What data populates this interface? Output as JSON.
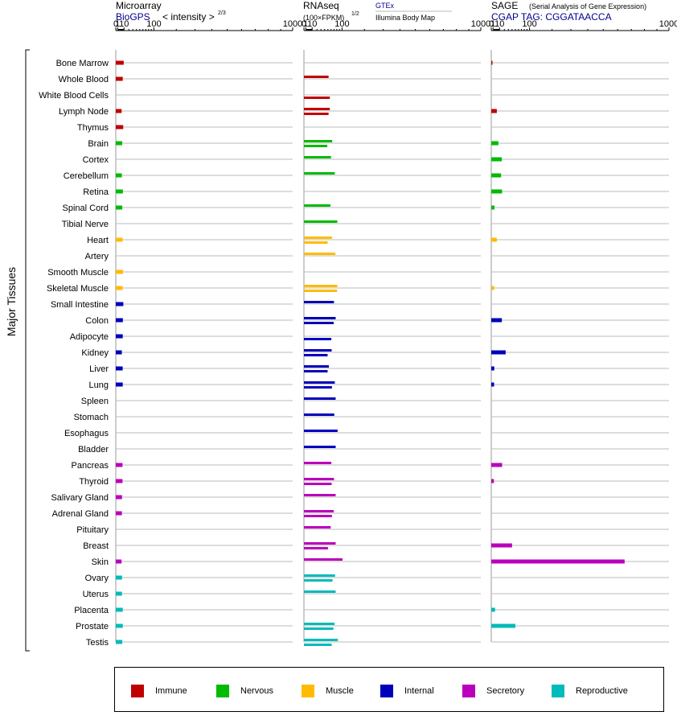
{
  "colors": {
    "Immune": "#c00000",
    "Nervous": "#00bb00",
    "Muscle": "#ffbb00",
    "Internal": "#0000bb",
    "Secretory": "#bb00bb",
    "Reproductive": "#00bbbb"
  },
  "y_axis_label": "Major Tissues",
  "tissues": [
    "Bone Marrow",
    "Whole Blood",
    "White Blood Cells",
    "Lymph Node",
    "Thymus",
    "Brain",
    "Cortex",
    "Cerebellum",
    "Retina",
    "Spinal Cord",
    "Tibial Nerve",
    "Heart",
    "Artery",
    "Smooth Muscle",
    "Skeletal Muscle",
    "Small Intestine",
    "Colon",
    "Adipocyte",
    "Kidney",
    "Liver",
    "Lung",
    "Spleen",
    "Stomach",
    "Esophagus",
    "Bladder",
    "Pancreas",
    "Thyroid",
    "Salivary Gland",
    "Adrenal Gland",
    "Pituitary",
    "Breast",
    "Skin",
    "Ovary",
    "Uterus",
    "Placenta",
    "Prostate",
    "Testis"
  ],
  "tissue_groups": [
    "Immune",
    "Immune",
    "Immune",
    "Immune",
    "Immune",
    "Nervous",
    "Nervous",
    "Nervous",
    "Nervous",
    "Nervous",
    "Nervous",
    "Muscle",
    "Muscle",
    "Muscle",
    "Muscle",
    "Internal",
    "Internal",
    "Internal",
    "Internal",
    "Internal",
    "Internal",
    "Internal",
    "Internal",
    "Internal",
    "Internal",
    "Secretory",
    "Secretory",
    "Secretory",
    "Secretory",
    "Secretory",
    "Secretory",
    "Secretory",
    "Reproductive",
    "Reproductive",
    "Reproductive",
    "Reproductive",
    "Reproductive"
  ],
  "legend": [
    "Immune",
    "Nervous",
    "Muscle",
    "Internal",
    "Secretory",
    "Reproductive"
  ],
  "chart_data": [
    {
      "type": "bar",
      "panel": "microarray",
      "title": "Microarray",
      "subtitle_source": "BioGPS",
      "subtitle_unit": "< intensity >",
      "unit_exponent": "2/3",
      "ticks": [
        "0",
        "1",
        "10",
        "100",
        "1000"
      ],
      "ylim": [
        0,
        1000
      ],
      "values": [
        9.5,
        7.8,
        null,
        6.0,
        8.6,
        6.9,
        null,
        6.4,
        8.1,
        7.0,
        null,
        7.4,
        null,
        8.2,
        7.4,
        8.8,
        8.0,
        7.8,
        6.3,
        7.7,
        7.8,
        null,
        null,
        null,
        null,
        7.4,
        7.4,
        6.6,
        6.4,
        null,
        null,
        5.9,
        6.6,
        6.5,
        7.8,
        7.9,
        7.0
      ]
    },
    {
      "type": "bar",
      "panel": "rnaseq",
      "title": "RNAseq",
      "subtitle_unit": "(100×FPKM)",
      "unit_exponent": "1/2",
      "source_link": "GTEx",
      "source_note": "Illumina Body Map",
      "ticks": [
        "0",
        "1",
        "10",
        "100",
        "1000"
      ],
      "ylim": [
        0,
        1000
      ],
      "values_gtex": [
        null,
        52,
        null,
        56,
        null,
        64,
        60,
        73,
        null,
        58,
        82,
        63,
        75,
        null,
        82,
        70,
        76,
        null,
        62,
        53,
        73,
        76,
        71,
        83,
        76,
        61,
        70,
        76,
        69,
        59,
        76,
        102,
        74,
        76,
        null,
        72,
        84
      ],
      "values_bodymap": [
        null,
        null,
        56,
        52,
        null,
        48,
        null,
        null,
        null,
        null,
        null,
        49,
        null,
        null,
        81,
        null,
        69,
        61,
        49,
        49,
        63,
        null,
        null,
        null,
        null,
        null,
        62,
        null,
        63,
        null,
        50,
        null,
        65,
        null,
        null,
        68,
        62
      ]
    },
    {
      "type": "bar",
      "panel": "sage",
      "title": "SAGE",
      "subtitle_note": "(Serial Analysis of Gene Expression)",
      "tag_label": "CGAP TAG: CGGATAACCA",
      "ticks": [
        "0",
        "1",
        "10",
        "100",
        "1000"
      ],
      "ylim": [
        0,
        1000
      ],
      "values": [
        0.05,
        null,
        null,
        5.5,
        null,
        8.0,
        14.5,
        13.0,
        15.0,
        2.4,
        null,
        5.5,
        null,
        null,
        2.0,
        null,
        14.5,
        null,
        23.0,
        2.2,
        2.0,
        null,
        null,
        null,
        null,
        15.0,
        1.8,
        null,
        null,
        null,
        40.0,
        650.0,
        null,
        null,
        3.1,
        50.0,
        null
      ]
    }
  ]
}
